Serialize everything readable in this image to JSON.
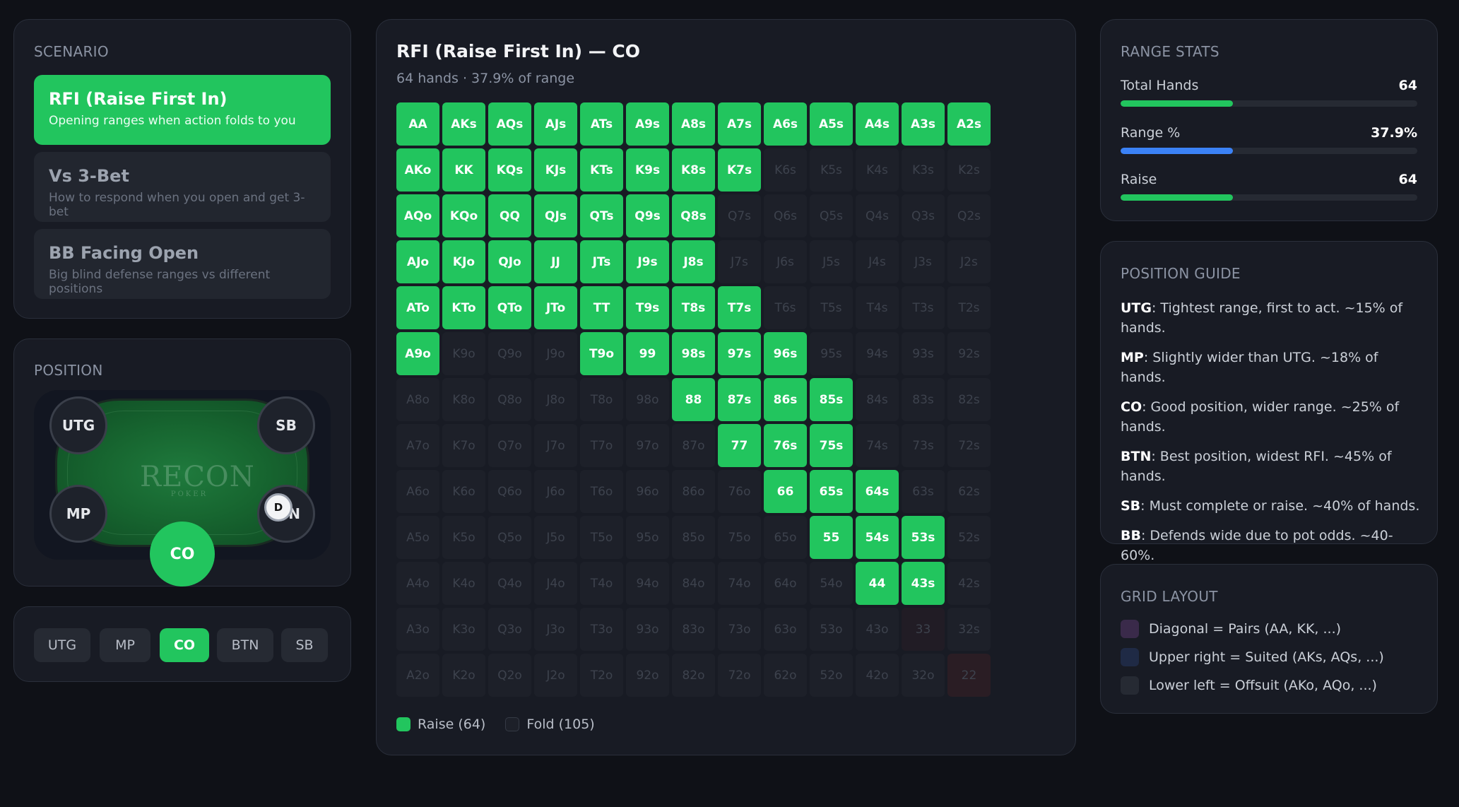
{
  "scenario": {
    "title": "SCENARIO",
    "items": [
      {
        "title": "RFI (Raise First In)",
        "desc": "Opening ranges when action folds to you"
      },
      {
        "title": "Vs 3-Bet",
        "desc": "How to respond when you open and get 3-bet"
      },
      {
        "title": "BB Facing Open",
        "desc": "Big blind defense ranges vs different positions"
      }
    ],
    "active_index": 0
  },
  "position": {
    "title": "POSITION",
    "logo": "RECON",
    "logo_sub": "POKER",
    "seats": {
      "utg": "UTG",
      "sb": "SB",
      "mp": "MP",
      "btn": "N",
      "co": "CO"
    },
    "dealer": "D",
    "buttons": [
      "UTG",
      "MP",
      "CO",
      "BTN",
      "SB"
    ],
    "active_button": "CO"
  },
  "grid": {
    "title": "RFI (Raise First In) — CO",
    "subtitle": "64 hands · 37.9% of range",
    "ranks": [
      "A",
      "K",
      "Q",
      "J",
      "T",
      "9",
      "8",
      "7",
      "6",
      "5",
      "4",
      "3",
      "2"
    ],
    "raise_hands": [
      "AA",
      "AKs",
      "AQs",
      "AJs",
      "ATs",
      "A9s",
      "A8s",
      "A7s",
      "A6s",
      "A5s",
      "A4s",
      "A3s",
      "A2s",
      "AKo",
      "KK",
      "KQs",
      "KJs",
      "KTs",
      "K9s",
      "K8s",
      "K7s",
      "AQo",
      "KQo",
      "QQ",
      "QJs",
      "QTs",
      "Q9s",
      "Q8s",
      "AJo",
      "KJo",
      "QJo",
      "JJ",
      "JTs",
      "J9s",
      "J8s",
      "ATo",
      "KTo",
      "QTo",
      "JTo",
      "TT",
      "T9s",
      "T8s",
      "T7s",
      "A9o",
      "T9o",
      "99",
      "98s",
      "97s",
      "96s",
      "88",
      "87s",
      "86s",
      "85s",
      "77",
      "76s",
      "75s",
      "66",
      "65s",
      "64s",
      "55",
      "54s",
      "53s",
      "44",
      "43s"
    ],
    "legend": {
      "raise": "Raise (64)",
      "fold": "Fold (105)"
    },
    "colors": {
      "raise": "#22c55e",
      "fold": "#1d2029"
    }
  },
  "stats": {
    "title": "RANGE STATS",
    "items": [
      {
        "label": "Total Hands",
        "value": "64",
        "fraction": 0.379,
        "color": "#22c55e"
      },
      {
        "label": "Range %",
        "value": "37.9%",
        "fraction": 0.379,
        "color": "#3b82f6"
      },
      {
        "label": "Raise",
        "value": "64",
        "fraction": 0.379,
        "color": "#22c55e"
      }
    ]
  },
  "guide": {
    "title": "POSITION GUIDE",
    "items": [
      {
        "pos": "UTG",
        "text": ": Tightest range, first to act. ~15% of hands."
      },
      {
        "pos": "MP",
        "text": ": Slightly wider than UTG. ~18% of hands."
      },
      {
        "pos": "CO",
        "text": ": Good position, wider range. ~25% of hands."
      },
      {
        "pos": "BTN",
        "text": ": Best position, widest RFI. ~45% of hands."
      },
      {
        "pos": "SB",
        "text": ": Must complete or raise. ~40% of hands."
      },
      {
        "pos": "BB",
        "text": ": Defends wide due to pot odds. ~40-60%."
      }
    ]
  },
  "layout": {
    "title": "GRID LAYOUT",
    "items": [
      {
        "label": "Diagonal = Pairs (AA, KK, ...)",
        "color": "#3a2a4a"
      },
      {
        "label": "Upper right = Suited (AKs, AQs, ...)",
        "color": "#1f2a45"
      },
      {
        "label": "Lower left = Offsuit (AKo, AQo, ...)",
        "color": "#262a33"
      }
    ]
  }
}
